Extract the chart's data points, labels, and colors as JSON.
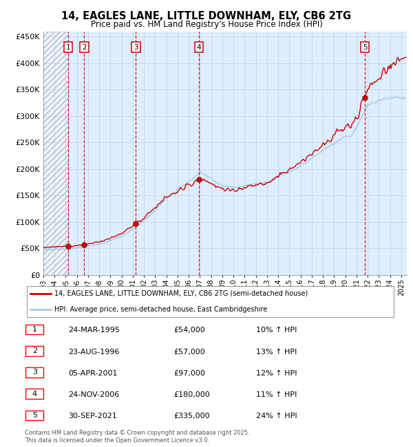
{
  "title_line1": "14, EAGLES LANE, LITTLE DOWNHAM, ELY, CB6 2TG",
  "title_line2": "Price paid vs. HM Land Registry's House Price Index (HPI)",
  "ylabel_ticks": [
    "£0",
    "£50K",
    "£100K",
    "£150K",
    "£200K",
    "£250K",
    "£300K",
    "£350K",
    "£400K",
    "£450K"
  ],
  "ytick_values": [
    0,
    50000,
    100000,
    150000,
    200000,
    250000,
    300000,
    350000,
    400000,
    450000
  ],
  "ylim": [
    0,
    460000
  ],
  "xlim_start": 1993.0,
  "xlim_end": 2025.5,
  "sale_dates": [
    1995.23,
    1996.65,
    2001.27,
    2006.9,
    2021.75
  ],
  "sale_prices": [
    54000,
    57000,
    97000,
    180000,
    335000
  ],
  "sale_labels": [
    "1",
    "2",
    "3",
    "4",
    "5"
  ],
  "vline_color": "#cc0000",
  "sale_marker_color": "#cc0000",
  "red_line_color": "#cc0000",
  "blue_line_color": "#aaccee",
  "grid_color": "#c8d8e8",
  "bg_color": "#ddeeff",
  "legend_label_red": "14, EAGLES LANE, LITTLE DOWNHAM, ELY, CB6 2TG (semi-detached house)",
  "legend_label_blue": "HPI: Average price, semi-detached house, East Cambridgeshire",
  "table_data": [
    [
      "1",
      "24-MAR-1995",
      "£54,000",
      "10% ↑ HPI"
    ],
    [
      "2",
      "23-AUG-1996",
      "£57,000",
      "13% ↑ HPI"
    ],
    [
      "3",
      "05-APR-2001",
      "£97,000",
      "12% ↑ HPI"
    ],
    [
      "4",
      "24-NOV-2006",
      "£180,000",
      "11% ↑ HPI"
    ],
    [
      "5",
      "30-SEP-2021",
      "£335,000",
      "24% ↑ HPI"
    ]
  ],
  "footnote": "Contains HM Land Registry data © Crown copyright and database right 2025.\nThis data is licensed under the Open Government Licence v3.0."
}
